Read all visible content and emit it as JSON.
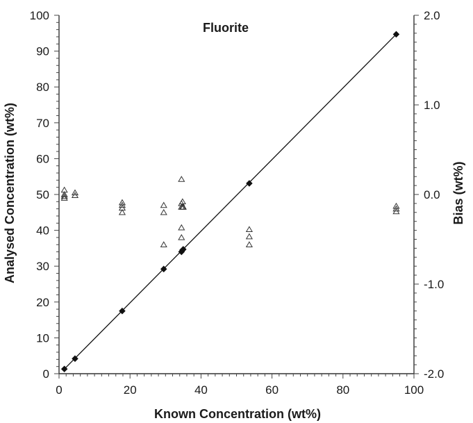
{
  "chart_data": {
    "type": "scatter",
    "title": "Fluorite",
    "xlabel": "Known Concentration (wt%)",
    "ylabel": "Analysed Concentration (wt%)",
    "y2label": "Bias (wt%)",
    "xlim": [
      0,
      100
    ],
    "ylim": [
      0,
      100
    ],
    "y2lim": [
      -2.0,
      2.0
    ],
    "x_ticks": [
      "0",
      "20",
      "40",
      "60",
      "80",
      "100"
    ],
    "y_ticks": [
      "0",
      "10",
      "20",
      "30",
      "40",
      "50",
      "60",
      "70",
      "80",
      "90",
      "100"
    ],
    "y2_ticks": [
      "-2.0",
      "-1.0",
      "0.0",
      "1.0",
      "2.0"
    ],
    "grid": false,
    "series": [
      {
        "marker": "filled-diamond",
        "axis": "left",
        "color": "#111111",
        "x": [
          1.5,
          4.5,
          17.8,
          29.5,
          34.5,
          34.8,
          35.0,
          53.6,
          95.0
        ],
        "y": [
          1.3,
          4.2,
          17.5,
          29.2,
          34.0,
          34.5,
          34.7,
          53.1,
          94.7
        ]
      },
      {
        "marker": "open-triangle",
        "axis": "right",
        "color": "#333333",
        "x": [
          1.5,
          1.5,
          1.5,
          1.5,
          4.5,
          4.5,
          17.8,
          17.8,
          17.8,
          17.8,
          29.5,
          29.5,
          29.5,
          34.5,
          34.5,
          34.5,
          34.5,
          34.5,
          34.8,
          34.8,
          35.0,
          53.6,
          53.6,
          53.6,
          95.0,
          95.0,
          95.0
        ],
        "y": [
          0.05,
          0.0,
          -0.02,
          -0.04,
          0.02,
          -0.01,
          -0.09,
          -0.12,
          -0.15,
          -0.2,
          -0.12,
          -0.2,
          -0.56,
          0.17,
          -0.1,
          -0.14,
          -0.37,
          -0.48,
          -0.08,
          -0.14,
          -0.14,
          -0.39,
          -0.47,
          -0.56,
          -0.13,
          -0.16,
          -0.19
        ]
      }
    ],
    "fit_line": {
      "x": [
        1.5,
        95.0
      ],
      "y": [
        1.3,
        94.7
      ]
    }
  }
}
